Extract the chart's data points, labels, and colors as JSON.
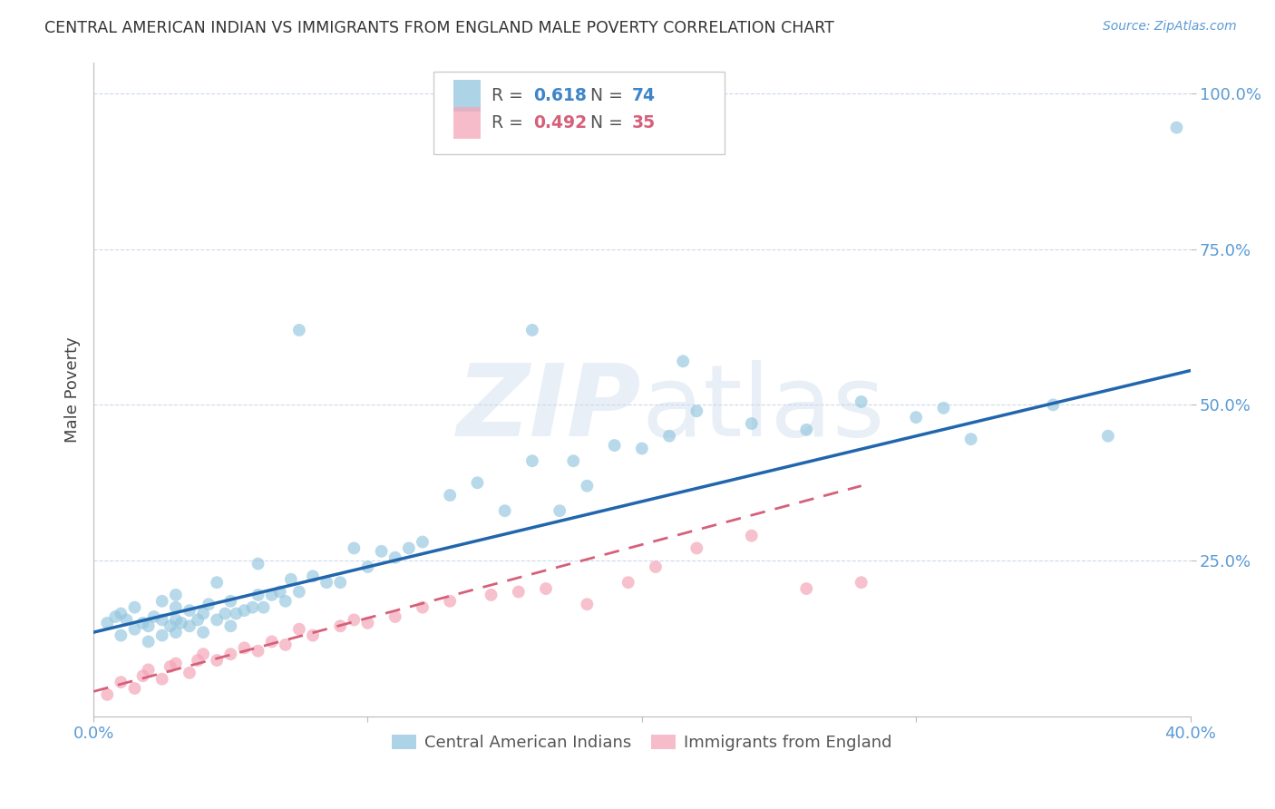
{
  "title": "CENTRAL AMERICAN INDIAN VS IMMIGRANTS FROM ENGLAND MALE POVERTY CORRELATION CHART",
  "source": "Source: ZipAtlas.com",
  "ylabel": "Male Poverty",
  "xlim": [
    0.0,
    0.4
  ],
  "ylim": [
    0.0,
    1.05
  ],
  "ytick_positions": [
    0.25,
    0.5,
    0.75,
    1.0
  ],
  "ytick_labels": [
    "25.0%",
    "50.0%",
    "75.0%",
    "100.0%"
  ],
  "xtick_positions": [
    0.0,
    0.1,
    0.2,
    0.3,
    0.4
  ],
  "xtick_labels": [
    "0.0%",
    "",
    "",
    "",
    "40.0%"
  ],
  "legend_line1_R": "0.618",
  "legend_line1_N": "74",
  "legend_line2_R": "0.492",
  "legend_line2_N": "35",
  "blue_color": "#92c5de",
  "pink_color": "#f4a6b8",
  "trend_blue": "#2166ac",
  "trend_pink": "#d6607a",
  "blue_scatter_x": [
    0.005,
    0.008,
    0.01,
    0.01,
    0.012,
    0.015,
    0.015,
    0.018,
    0.02,
    0.02,
    0.022,
    0.025,
    0.025,
    0.025,
    0.028,
    0.03,
    0.03,
    0.03,
    0.03,
    0.032,
    0.035,
    0.035,
    0.038,
    0.04,
    0.04,
    0.042,
    0.045,
    0.045,
    0.048,
    0.05,
    0.05,
    0.052,
    0.055,
    0.058,
    0.06,
    0.06,
    0.062,
    0.065,
    0.068,
    0.07,
    0.072,
    0.075,
    0.08,
    0.085,
    0.09,
    0.095,
    0.1,
    0.105,
    0.11,
    0.115,
    0.12,
    0.13,
    0.14,
    0.15,
    0.16,
    0.17,
    0.175,
    0.18,
    0.19,
    0.2,
    0.21,
    0.22,
    0.24,
    0.26,
    0.28,
    0.3,
    0.31,
    0.32,
    0.35,
    0.37,
    0.075,
    0.16,
    0.215,
    0.395
  ],
  "blue_scatter_y": [
    0.15,
    0.16,
    0.13,
    0.165,
    0.155,
    0.14,
    0.175,
    0.15,
    0.12,
    0.145,
    0.16,
    0.13,
    0.155,
    0.185,
    0.145,
    0.135,
    0.155,
    0.175,
    0.195,
    0.15,
    0.145,
    0.17,
    0.155,
    0.135,
    0.165,
    0.18,
    0.155,
    0.215,
    0.165,
    0.145,
    0.185,
    0.165,
    0.17,
    0.175,
    0.195,
    0.245,
    0.175,
    0.195,
    0.2,
    0.185,
    0.22,
    0.2,
    0.225,
    0.215,
    0.215,
    0.27,
    0.24,
    0.265,
    0.255,
    0.27,
    0.28,
    0.355,
    0.375,
    0.33,
    0.41,
    0.33,
    0.41,
    0.37,
    0.435,
    0.43,
    0.45,
    0.49,
    0.47,
    0.46,
    0.505,
    0.48,
    0.495,
    0.445,
    0.5,
    0.45,
    0.62,
    0.62,
    0.57,
    0.945
  ],
  "pink_scatter_x": [
    0.005,
    0.01,
    0.015,
    0.018,
    0.02,
    0.025,
    0.028,
    0.03,
    0.035,
    0.038,
    0.04,
    0.045,
    0.05,
    0.055,
    0.06,
    0.065,
    0.07,
    0.075,
    0.08,
    0.09,
    0.095,
    0.1,
    0.11,
    0.12,
    0.13,
    0.145,
    0.155,
    0.165,
    0.18,
    0.195,
    0.205,
    0.22,
    0.24,
    0.26,
    0.28
  ],
  "pink_scatter_y": [
    0.035,
    0.055,
    0.045,
    0.065,
    0.075,
    0.06,
    0.08,
    0.085,
    0.07,
    0.09,
    0.1,
    0.09,
    0.1,
    0.11,
    0.105,
    0.12,
    0.115,
    0.14,
    0.13,
    0.145,
    0.155,
    0.15,
    0.16,
    0.175,
    0.185,
    0.195,
    0.2,
    0.205,
    0.18,
    0.215,
    0.24,
    0.27,
    0.29,
    0.205,
    0.215
  ]
}
